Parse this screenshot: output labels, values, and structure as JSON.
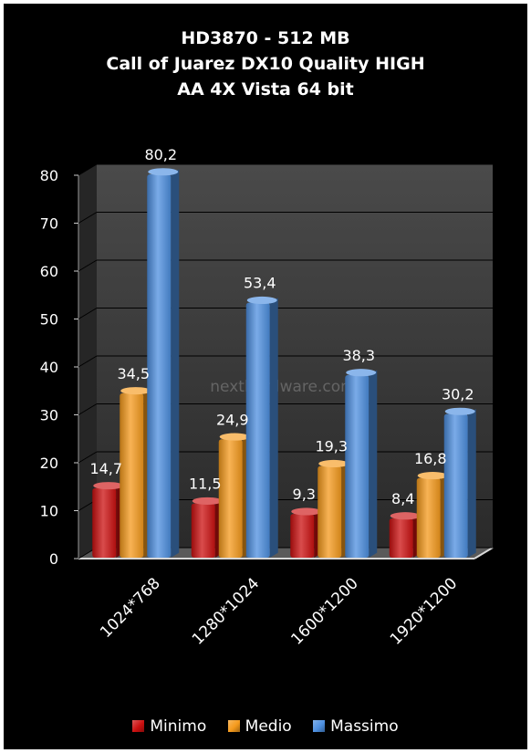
{
  "chart_data": {
    "type": "bar",
    "title_lines": [
      "HD3870 - 512 MB",
      "Call of Juarez DX10 Quality HIGH",
      "AA 4X Vista 64 bit"
    ],
    "categories": [
      "1024*768",
      "1280*1024",
      "1600*1200",
      "1920*1200"
    ],
    "series": [
      {
        "name": "Minimo",
        "values": [
          14.7,
          11.5,
          9.3,
          8.4
        ],
        "labels": [
          "14,7",
          "11,5",
          "9,3",
          "8,4"
        ],
        "color": "#cc1010"
      },
      {
        "name": "Medio",
        "values": [
          34.5,
          24.9,
          19.3,
          16.8
        ],
        "labels": [
          "34,5",
          "24,9",
          "19,3",
          "16,8"
        ],
        "color": "#f59a1c"
      },
      {
        "name": "Massimo",
        "values": [
          80.2,
          53.4,
          38.3,
          30.2
        ],
        "labels": [
          "80,2",
          "53,4",
          "38,3",
          "30,2"
        ],
        "color": "#4d8fe0"
      }
    ],
    "yticks": [
      "0",
      "10",
      "20",
      "30",
      "40",
      "50",
      "60",
      "70",
      "80"
    ],
    "ylim": [
      0,
      80
    ],
    "grid": true,
    "legend_position": "bottom",
    "watermark": "nexthardware.com"
  }
}
